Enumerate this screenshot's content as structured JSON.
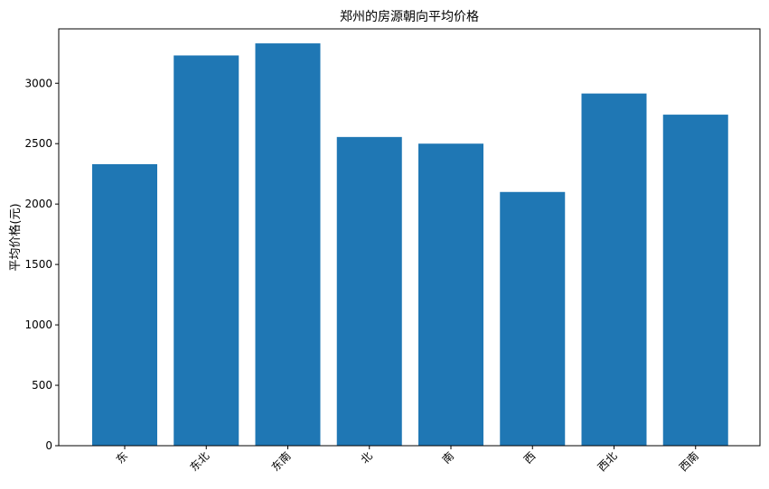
{
  "chart_data": {
    "type": "bar",
    "title": "郑州的房源朝向平均价格",
    "xlabel": "",
    "ylabel": "平均价格(元)",
    "categories": [
      "东",
      "东北",
      "东南",
      "北",
      "南",
      "西",
      "西北",
      "西南"
    ],
    "values": [
      2330,
      3230,
      3330,
      2555,
      2500,
      2100,
      2915,
      2740
    ],
    "ylim": [
      0,
      3450
    ],
    "yticks": [
      0,
      500,
      1000,
      1500,
      2000,
      2500,
      3000
    ],
    "ytick_labels": [
      "0",
      "500",
      "1000",
      "1500",
      "2000",
      "2500",
      "3000"
    ],
    "bar_color": "#1f77b4",
    "grid": false,
    "xtick_rotation_deg": 45
  }
}
